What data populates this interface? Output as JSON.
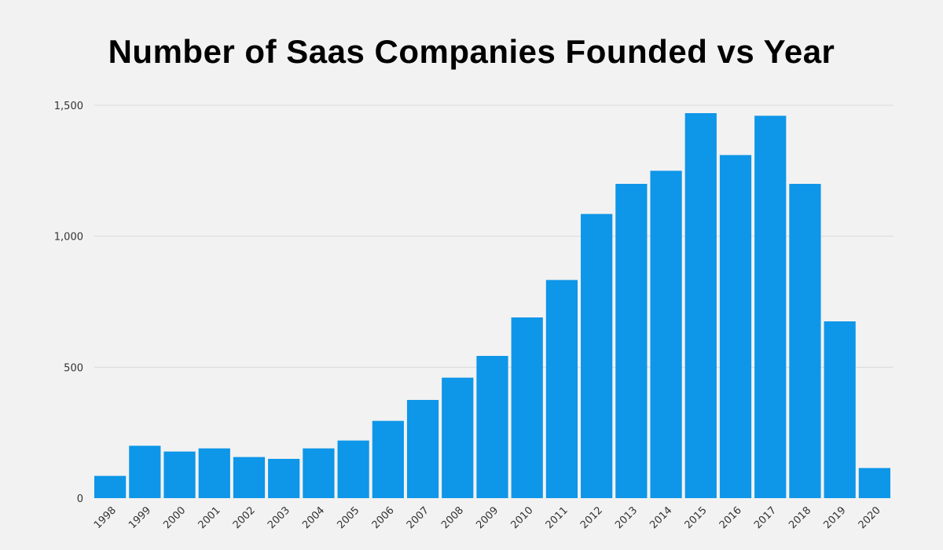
{
  "chart_data": {
    "type": "bar",
    "title": "Number of Saas Companies Founded vs Year",
    "xlabel": "",
    "ylabel": "",
    "ylim": [
      0,
      1500
    ],
    "yticks": [
      0,
      500,
      1000,
      1500
    ],
    "ytick_labels": [
      "0",
      "500",
      "1,000",
      "1,500"
    ],
    "grid": true,
    "categories": [
      "1998",
      "1999",
      "2000",
      "2001",
      "2002",
      "2003",
      "2004",
      "2005",
      "2006",
      "2007",
      "2008",
      "2009",
      "2010",
      "2011",
      "2012",
      "2013",
      "2014",
      "2015",
      "2016",
      "2017",
      "2018",
      "2019",
      "2020"
    ],
    "values": [
      85,
      200,
      178,
      190,
      157,
      150,
      190,
      220,
      295,
      375,
      460,
      543,
      690,
      833,
      1085,
      1200,
      1250,
      1470,
      1310,
      1460,
      1200,
      675,
      115
    ],
    "bar_color": "#0e96e8",
    "grid_color": "#d9d9d9",
    "background": "#f2f2f2"
  }
}
